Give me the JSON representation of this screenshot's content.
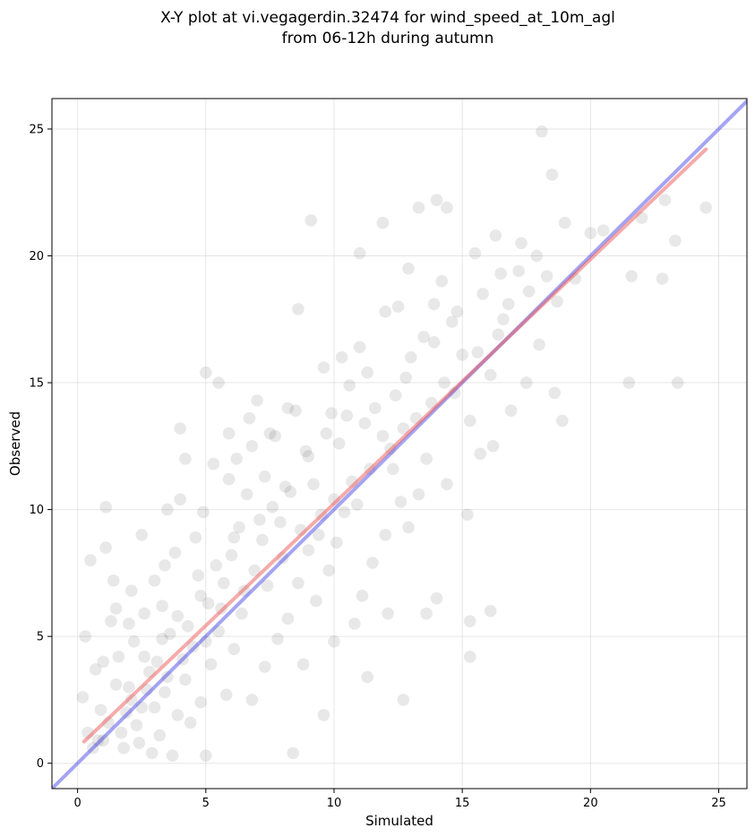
{
  "chart_data": {
    "type": "scatter",
    "title_lines": [
      "X-Y plot at vi.vegagerdin.32474 for wind_speed_at_10m_agl",
      "from 06-12h during autumn"
    ],
    "xlabel": "Simulated",
    "ylabel": "Observed",
    "xlim": [
      -1,
      26.1
    ],
    "ylim": [
      -1,
      26.2
    ],
    "xticks": [
      0,
      5,
      10,
      15,
      20,
      25
    ],
    "yticks": [
      0,
      5,
      10,
      15,
      20,
      25
    ],
    "grid": true,
    "point_color": "#000000",
    "reference_line": {
      "color": "#4a4ae8",
      "x": [
        -1,
        26.1
      ],
      "y": [
        -1,
        26.1
      ]
    },
    "fit_line": {
      "color": "#ee5555",
      "x": [
        0.25,
        24.5
      ],
      "y": [
        0.85,
        24.2
      ]
    },
    "points": [
      [
        0.3,
        5.0
      ],
      [
        0.5,
        8.0
      ],
      [
        1.1,
        10.1
      ],
      [
        1.1,
        8.5
      ],
      [
        1.4,
        7.2
      ],
      [
        1.5,
        6.1
      ],
      [
        1.3,
        5.6
      ],
      [
        0.7,
        3.7
      ],
      [
        0.9,
        2.1
      ],
      [
        0.6,
        0.6
      ],
      [
        0.2,
        2.6
      ],
      [
        1.0,
        0.9
      ],
      [
        1.6,
        4.2
      ],
      [
        2.0,
        3.0
      ],
      [
        2.3,
        1.5
      ],
      [
        1.8,
        0.6
      ],
      [
        2.5,
        2.2
      ],
      [
        2.8,
        3.6
      ],
      [
        2.2,
        4.8
      ],
      [
        2.6,
        5.9
      ],
      [
        2.1,
        6.8
      ],
      [
        3.0,
        7.2
      ],
      [
        3.3,
        6.2
      ],
      [
        3.6,
        5.1
      ],
      [
        3.1,
        4.0
      ],
      [
        3.4,
        2.8
      ],
      [
        3.9,
        1.9
      ],
      [
        4.2,
        3.3
      ],
      [
        4.5,
        4.6
      ],
      [
        3.8,
        8.3
      ],
      [
        3.5,
        10.0
      ],
      [
        4.0,
        10.4
      ],
      [
        4.6,
        8.9
      ],
      [
        4.9,
        9.9
      ],
      [
        4.2,
        12.0
      ],
      [
        5.3,
        11.8
      ],
      [
        4.7,
        7.4
      ],
      [
        5.1,
        6.3
      ],
      [
        5.5,
        5.2
      ],
      [
        5.2,
        3.9
      ],
      [
        5.8,
        2.7
      ],
      [
        6.1,
        4.5
      ],
      [
        6.4,
        5.9
      ],
      [
        5.7,
        7.1
      ],
      [
        6.0,
        8.2
      ],
      [
        6.3,
        9.3
      ],
      [
        6.6,
        10.6
      ],
      [
        6.2,
        12.0
      ],
      [
        5.9,
        11.2
      ],
      [
        7.0,
        14.3
      ],
      [
        6.8,
        12.5
      ],
      [
        7.3,
        11.3
      ],
      [
        7.6,
        10.1
      ],
      [
        7.2,
        8.8
      ],
      [
        7.9,
        9.5
      ],
      [
        8.3,
        10.7
      ],
      [
        7.7,
        12.9
      ],
      [
        8.5,
        13.9
      ],
      [
        8.9,
        12.3
      ],
      [
        9.2,
        11.0
      ],
      [
        9.5,
        9.8
      ],
      [
        9.0,
        8.4
      ],
      [
        8.6,
        7.1
      ],
      [
        8.2,
        5.7
      ],
      [
        7.8,
        4.9
      ],
      [
        8.8,
        3.9
      ],
      [
        9.3,
        6.4
      ],
      [
        9.8,
        7.6
      ],
      [
        10.1,
        8.7
      ],
      [
        10.4,
        9.9
      ],
      [
        10.7,
        11.1
      ],
      [
        10.2,
        12.6
      ],
      [
        9.9,
        13.8
      ],
      [
        10.6,
        14.9
      ],
      [
        11.0,
        16.4
      ],
      [
        11.3,
        15.4
      ],
      [
        11.6,
        14.0
      ],
      [
        11.9,
        12.9
      ],
      [
        12.3,
        11.6
      ],
      [
        12.6,
        10.3
      ],
      [
        12.0,
        9.0
      ],
      [
        11.5,
        7.9
      ],
      [
        11.1,
        6.6
      ],
      [
        10.8,
        5.5
      ],
      [
        12.9,
        9.3
      ],
      [
        13.3,
        10.6
      ],
      [
        13.6,
        12.0
      ],
      [
        13.2,
        13.6
      ],
      [
        12.8,
        15.2
      ],
      [
        13.5,
        16.8
      ],
      [
        13.9,
        18.1
      ],
      [
        14.2,
        19.0
      ],
      [
        14.6,
        17.4
      ],
      [
        15.0,
        16.1
      ],
      [
        14.7,
        14.6
      ],
      [
        15.3,
        13.5
      ],
      [
        15.7,
        12.2
      ],
      [
        14.4,
        11.0
      ],
      [
        15.2,
        9.8
      ],
      [
        16.1,
        15.3
      ],
      [
        16.4,
        16.9
      ],
      [
        16.8,
        18.1
      ],
      [
        17.2,
        19.4
      ],
      [
        17.6,
        18.6
      ],
      [
        17.9,
        20.0
      ],
      [
        18.3,
        19.2
      ],
      [
        18.7,
        18.2
      ],
      [
        18.0,
        16.5
      ],
      [
        17.5,
        15.0
      ],
      [
        16.9,
        13.9
      ],
      [
        16.2,
        12.5
      ],
      [
        18.6,
        14.6
      ],
      [
        18.9,
        13.5
      ],
      [
        19.4,
        19.1
      ],
      [
        20.0,
        20.9
      ],
      [
        21.6,
        19.2
      ],
      [
        21.5,
        15.0
      ],
      [
        22.8,
        19.1
      ],
      [
        23.4,
        15.0
      ],
      [
        23.3,
        20.6
      ],
      [
        24.5,
        21.9
      ],
      [
        18.1,
        24.9
      ],
      [
        18.5,
        23.2
      ],
      [
        14.0,
        22.2
      ],
      [
        14.4,
        21.9
      ],
      [
        13.3,
        21.9
      ],
      [
        9.1,
        21.4
      ],
      [
        11.9,
        21.3
      ],
      [
        12.5,
        18.0
      ],
      [
        11.0,
        20.1
      ],
      [
        8.6,
        17.9
      ],
      [
        5.5,
        15.0
      ],
      [
        5.0,
        15.4
      ],
      [
        4.0,
        13.2
      ],
      [
        2.5,
        9.0
      ],
      [
        15.3,
        5.6
      ],
      [
        15.3,
        4.2
      ],
      [
        16.1,
        6.0
      ],
      [
        12.7,
        2.5
      ],
      [
        9.6,
        1.9
      ],
      [
        8.4,
        0.4
      ],
      [
        5.0,
        0.3
      ],
      [
        3.7,
        0.3
      ],
      [
        2.9,
        0.4
      ],
      [
        6.8,
        2.5
      ],
      [
        7.3,
        3.8
      ],
      [
        11.3,
        3.4
      ],
      [
        12.1,
        5.9
      ],
      [
        13.6,
        5.9
      ],
      [
        14.0,
        6.5
      ],
      [
        10.0,
        4.8
      ],
      [
        1.7,
        1.2
      ],
      [
        2.4,
        0.8
      ],
      [
        3.2,
        1.1
      ],
      [
        4.4,
        1.6
      ],
      [
        4.8,
        2.4
      ],
      [
        1.9,
        2.0
      ],
      [
        2.7,
        2.9
      ],
      [
        3.5,
        3.4
      ],
      [
        4.1,
        4.1
      ],
      [
        4.3,
        5.4
      ],
      [
        5.0,
        4.8
      ],
      [
        5.6,
        6.1
      ],
      [
        6.5,
        6.8
      ],
      [
        6.9,
        7.6
      ],
      [
        7.4,
        7.0
      ],
      [
        8.0,
        8.1
      ],
      [
        8.7,
        9.2
      ],
      [
        9.4,
        9.0
      ],
      [
        10.0,
        10.4
      ],
      [
        10.9,
        10.2
      ],
      [
        11.4,
        11.6
      ],
      [
        12.2,
        12.4
      ],
      [
        12.7,
        13.2
      ],
      [
        13.8,
        14.2
      ],
      [
        14.3,
        15.0
      ],
      [
        15.6,
        16.2
      ],
      [
        16.6,
        17.5
      ],
      [
        3.0,
        2.2
      ],
      [
        2.1,
        2.5
      ],
      [
        1.2,
        1.6
      ],
      [
        0.8,
        0.9
      ],
      [
        1.5,
        3.1
      ],
      [
        2.6,
        4.2
      ],
      [
        3.3,
        4.9
      ],
      [
        3.9,
        5.8
      ],
      [
        4.8,
        6.6
      ],
      [
        5.4,
        7.8
      ],
      [
        6.1,
        8.9
      ],
      [
        7.1,
        9.6
      ],
      [
        8.1,
        10.9
      ],
      [
        9.0,
        12.1
      ],
      [
        9.7,
        13.0
      ],
      [
        10.5,
        13.7
      ],
      [
        11.2,
        13.4
      ],
      [
        12.4,
        14.5
      ],
      [
        13.0,
        16.0
      ],
      [
        13.9,
        16.6
      ],
      [
        14.8,
        17.8
      ],
      [
        15.8,
        18.5
      ],
      [
        16.5,
        19.3
      ],
      [
        17.3,
        20.5
      ],
      [
        19.0,
        21.3
      ],
      [
        20.5,
        21.0
      ],
      [
        22.0,
        21.5
      ],
      [
        22.9,
        22.2
      ],
      [
        15.5,
        20.1
      ],
      [
        16.3,
        20.8
      ],
      [
        12.9,
        19.5
      ],
      [
        12.0,
        17.8
      ],
      [
        10.3,
        16.0
      ],
      [
        9.6,
        15.6
      ],
      [
        8.2,
        14.0
      ],
      [
        7.5,
        13.0
      ],
      [
        6.7,
        13.6
      ],
      [
        5.9,
        13.0
      ],
      [
        3.4,
        7.8
      ],
      [
        2.0,
        5.5
      ],
      [
        1.0,
        4.0
      ],
      [
        0.4,
        1.2
      ]
    ]
  }
}
